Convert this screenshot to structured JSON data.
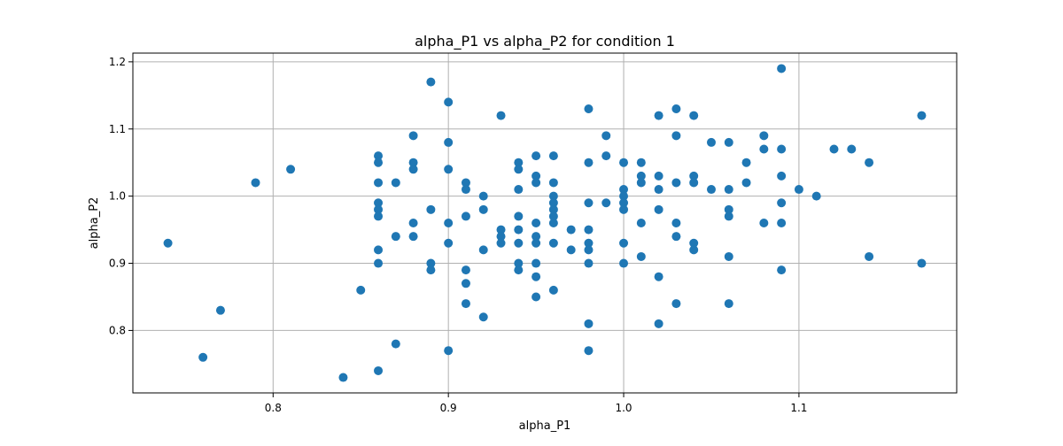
{
  "chart_data": {
    "type": "scatter",
    "title": "alpha_P1 vs alpha_P2 for condition 1",
    "xlabel": "alpha_P1",
    "ylabel": "alpha_P2",
    "xlim": [
      0.72,
      1.19
    ],
    "ylim": [
      0.707,
      1.213
    ],
    "xticks": [
      0.8,
      0.9,
      1.0,
      1.1
    ],
    "xtick_labels": [
      "0.8",
      "0.9",
      "1.0",
      "1.1"
    ],
    "yticks": [
      0.8,
      0.9,
      1.0,
      1.1,
      1.2
    ],
    "ytick_labels": [
      "0.8",
      "0.9",
      "1.0",
      "1.1",
      "1.2"
    ],
    "grid": true,
    "color": "#1f77b4",
    "points": [
      [
        0.74,
        0.93
      ],
      [
        0.76,
        0.76
      ],
      [
        0.77,
        0.83
      ],
      [
        0.79,
        1.02
      ],
      [
        0.81,
        1.04
      ],
      [
        0.84,
        0.73
      ],
      [
        0.85,
        0.86
      ],
      [
        0.86,
        1.06
      ],
      [
        0.86,
        1.05
      ],
      [
        0.86,
        1.02
      ],
      [
        0.86,
        0.99
      ],
      [
        0.86,
        0.98
      ],
      [
        0.86,
        0.97
      ],
      [
        0.86,
        0.92
      ],
      [
        0.86,
        0.9
      ],
      [
        0.86,
        0.74
      ],
      [
        0.87,
        1.02
      ],
      [
        0.87,
        0.94
      ],
      [
        0.87,
        0.78
      ],
      [
        0.88,
        1.09
      ],
      [
        0.88,
        1.05
      ],
      [
        0.88,
        1.04
      ],
      [
        0.88,
        0.96
      ],
      [
        0.88,
        0.94
      ],
      [
        0.89,
        1.17
      ],
      [
        0.89,
        0.98
      ],
      [
        0.89,
        0.9
      ],
      [
        0.89,
        0.89
      ],
      [
        0.9,
        1.14
      ],
      [
        0.9,
        1.08
      ],
      [
        0.9,
        1.04
      ],
      [
        0.9,
        0.96
      ],
      [
        0.9,
        0.93
      ],
      [
        0.9,
        0.77
      ],
      [
        0.91,
        1.02
      ],
      [
        0.91,
        1.01
      ],
      [
        0.91,
        0.97
      ],
      [
        0.91,
        0.89
      ],
      [
        0.91,
        0.87
      ],
      [
        0.91,
        0.84
      ],
      [
        0.92,
        1.0
      ],
      [
        0.92,
        0.98
      ],
      [
        0.92,
        0.92
      ],
      [
        0.92,
        0.82
      ],
      [
        0.93,
        1.12
      ],
      [
        0.93,
        0.95
      ],
      [
        0.93,
        0.94
      ],
      [
        0.93,
        0.93
      ],
      [
        0.94,
        1.05
      ],
      [
        0.94,
        1.04
      ],
      [
        0.94,
        1.01
      ],
      [
        0.94,
        0.97
      ],
      [
        0.94,
        0.95
      ],
      [
        0.94,
        0.93
      ],
      [
        0.94,
        0.9
      ],
      [
        0.94,
        0.89
      ],
      [
        0.95,
        1.06
      ],
      [
        0.95,
        1.03
      ],
      [
        0.95,
        1.02
      ],
      [
        0.95,
        0.96
      ],
      [
        0.95,
        0.94
      ],
      [
        0.95,
        0.93
      ],
      [
        0.95,
        0.9
      ],
      [
        0.95,
        0.88
      ],
      [
        0.95,
        0.85
      ],
      [
        0.96,
        1.06
      ],
      [
        0.96,
        1.02
      ],
      [
        0.96,
        1.0
      ],
      [
        0.96,
        0.99
      ],
      [
        0.96,
        0.98
      ],
      [
        0.96,
        0.97
      ],
      [
        0.96,
        0.96
      ],
      [
        0.96,
        0.93
      ],
      [
        0.96,
        0.86
      ],
      [
        0.97,
        0.95
      ],
      [
        0.97,
        0.92
      ],
      [
        0.98,
        1.13
      ],
      [
        0.98,
        1.05
      ],
      [
        0.98,
        0.99
      ],
      [
        0.98,
        0.95
      ],
      [
        0.98,
        0.93
      ],
      [
        0.98,
        0.92
      ],
      [
        0.98,
        0.9
      ],
      [
        0.98,
        0.81
      ],
      [
        0.98,
        0.77
      ],
      [
        0.99,
        1.09
      ],
      [
        0.99,
        1.06
      ],
      [
        0.99,
        0.99
      ],
      [
        1.0,
        1.05
      ],
      [
        1.0,
        1.01
      ],
      [
        1.0,
        1.0
      ],
      [
        1.0,
        0.99
      ],
      [
        1.0,
        0.98
      ],
      [
        1.0,
        0.93
      ],
      [
        1.0,
        0.9
      ],
      [
        1.01,
        1.05
      ],
      [
        1.01,
        1.03
      ],
      [
        1.01,
        1.02
      ],
      [
        1.01,
        0.96
      ],
      [
        1.01,
        0.91
      ],
      [
        1.02,
        1.12
      ],
      [
        1.02,
        1.03
      ],
      [
        1.02,
        1.01
      ],
      [
        1.02,
        0.98
      ],
      [
        1.02,
        0.88
      ],
      [
        1.02,
        0.81
      ],
      [
        1.03,
        1.13
      ],
      [
        1.03,
        1.09
      ],
      [
        1.03,
        1.02
      ],
      [
        1.03,
        0.96
      ],
      [
        1.03,
        0.94
      ],
      [
        1.03,
        0.84
      ],
      [
        1.04,
        1.12
      ],
      [
        1.04,
        1.03
      ],
      [
        1.04,
        1.02
      ],
      [
        1.04,
        0.93
      ],
      [
        1.04,
        0.92
      ],
      [
        1.05,
        1.08
      ],
      [
        1.05,
        1.01
      ],
      [
        1.06,
        1.08
      ],
      [
        1.06,
        1.01
      ],
      [
        1.06,
        0.98
      ],
      [
        1.06,
        0.97
      ],
      [
        1.06,
        0.91
      ],
      [
        1.06,
        0.84
      ],
      [
        1.07,
        1.05
      ],
      [
        1.07,
        1.02
      ],
      [
        1.08,
        1.09
      ],
      [
        1.08,
        1.07
      ],
      [
        1.08,
        0.96
      ],
      [
        1.09,
        1.19
      ],
      [
        1.09,
        1.07
      ],
      [
        1.09,
        1.03
      ],
      [
        1.09,
        0.99
      ],
      [
        1.09,
        0.96
      ],
      [
        1.09,
        0.89
      ],
      [
        1.1,
        1.01
      ],
      [
        1.11,
        1.0
      ],
      [
        1.12,
        1.07
      ],
      [
        1.13,
        1.07
      ],
      [
        1.14,
        1.05
      ],
      [
        1.14,
        0.91
      ],
      [
        1.17,
        1.12
      ],
      [
        1.17,
        0.9
      ]
    ]
  }
}
